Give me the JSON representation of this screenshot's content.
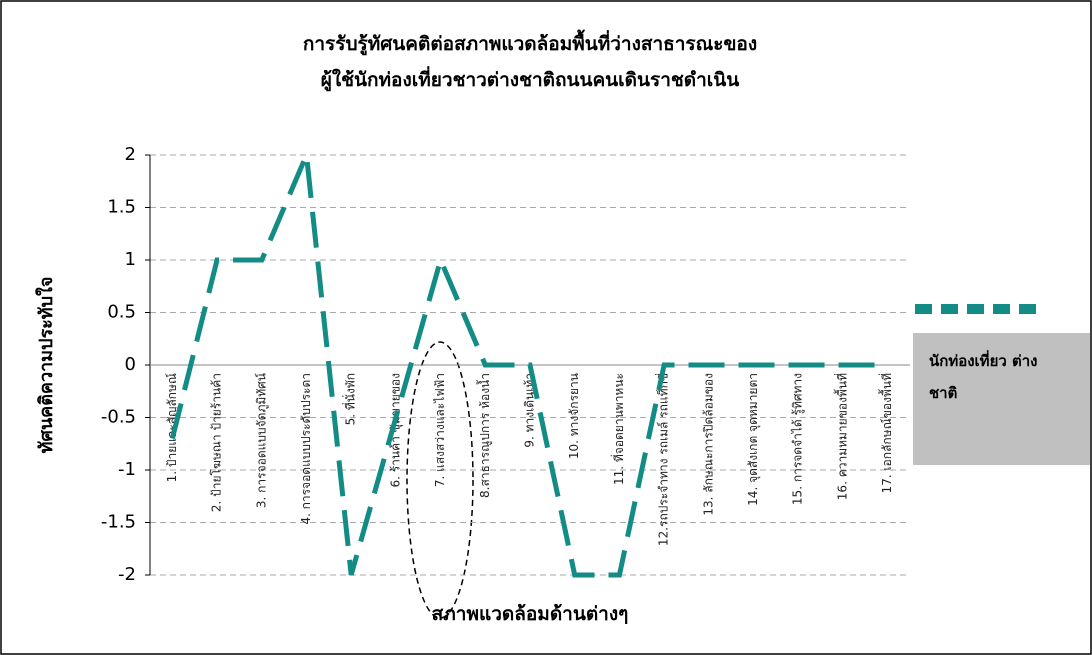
{
  "chart_data": {
    "type": "line",
    "title": [
      "การรับรู้ทัศนคติต่อสภาพแวดล้อมพื้นที่ว่างสาธารณะของ",
      "ผู้ใช้นักท่องเที่ยวชาวต่างชาติถนนคนเดินราชดำเนิน"
    ],
    "x_label": "สภาพแวดล้อมด้านต่างๆ",
    "y_label": "ทัศนคติความประทับใจ",
    "categories": [
      "1. ป้ายและสัญลักษณ์",
      "2. ป้ายโฆษณา ป้ายร้านค้า",
      "3. การจอดแบบจัดภูมิทัศน์",
      "4. การจอดแบบประดับประดา",
      "5. ที่นั่งพัก",
      "6. ร้านค้า ซุ้มขายของ",
      "7. แสงสว่างและไฟฟ้า",
      "8.สาธารณูปการ ห้องน้ำ",
      "9. ทางเดินเท้า",
      "10. ทางจักรยาน",
      "11. ที่จอดยานพาหนะ",
      "12.รถประจำทาง รถเมล์ รถแท็กซี่",
      "13. ลักษณะการปิดล้อมของ",
      "14. จุดสังเกต จุดหมายตา",
      "15. การจดจำได้ รู้ทิศทาง",
      "16. ความหมายของพื้นที่",
      "17. เอกลักษณ์ของพื้นที่"
    ],
    "series": [
      {
        "name": "นักท่องเที่ยว ต่างชาติ",
        "color": "#138c86",
        "values": [
          -0.7,
          1,
          1,
          2,
          -2,
          -0.5,
          1,
          0,
          0,
          -2,
          -2,
          0,
          0,
          0,
          0,
          0,
          0
        ]
      }
    ],
    "ylim": [
      -2,
      2
    ],
    "yticks": [
      -2,
      -1.5,
      -1,
      -0.5,
      0,
      0.5,
      1,
      1.5,
      2
    ],
    "grid": true,
    "legend": "right"
  }
}
